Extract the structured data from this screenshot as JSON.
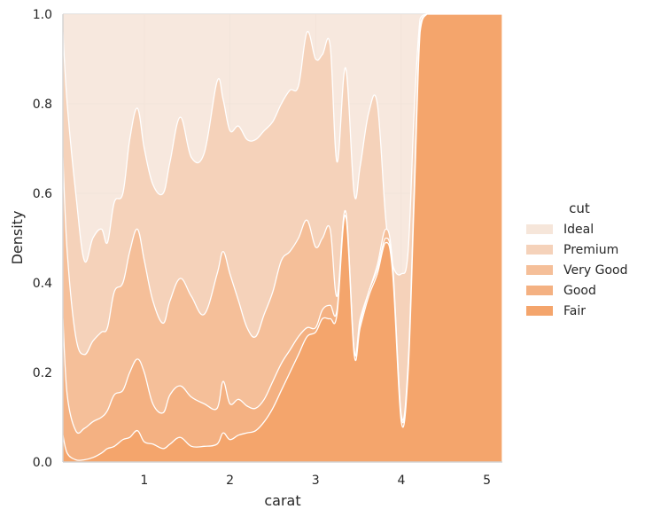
{
  "chart_data": {
    "type": "area",
    "stacked": "fill",
    "title": "",
    "xlabel": "carat",
    "ylabel": "Density",
    "xlim": [
      0.05,
      5.18
    ],
    "ylim": [
      0,
      1
    ],
    "xticks": [
      1,
      2,
      3,
      4,
      5
    ],
    "xtick_labels": [
      "1",
      "2",
      "3",
      "4",
      "5"
    ],
    "yticks": [
      0,
      0.2,
      0.4,
      0.6,
      0.8,
      1.0
    ],
    "ytick_labels": [
      "0.0",
      "0.2",
      "0.4",
      "0.6",
      "0.8",
      "1.0"
    ],
    "grid": true,
    "legend_title": "cut",
    "legend_position": "right",
    "legend": [
      {
        "name": "Ideal",
        "color": "#f6e6da"
      },
      {
        "name": "Premium",
        "color": "#f5d2ba"
      },
      {
        "name": "Very Good",
        "color": "#f5bf99"
      },
      {
        "name": "Good",
        "color": "#f4b182"
      },
      {
        "name": "Fair",
        "color": "#f4a56c"
      }
    ],
    "x": [
      0.05,
      0.1,
      0.2,
      0.3,
      0.4,
      0.5,
      0.57,
      0.65,
      0.75,
      0.83,
      0.92,
      1.0,
      1.1,
      1.22,
      1.3,
      1.42,
      1.55,
      1.7,
      1.85,
      1.92,
      2.0,
      2.1,
      2.2,
      2.3,
      2.4,
      2.5,
      2.6,
      2.7,
      2.8,
      2.9,
      3.0,
      3.08,
      3.17,
      3.25,
      3.35,
      3.45,
      3.52,
      3.62,
      3.72,
      3.82,
      3.9,
      4.0,
      4.08,
      4.15,
      4.22,
      4.3,
      4.4,
      4.6,
      4.8,
      5.0,
      5.18
    ],
    "cumulative_boundaries": [
      {
        "name": "Fair (top)",
        "values": [
          0.06,
          0.02,
          0.005,
          0.005,
          0.01,
          0.02,
          0.03,
          0.035,
          0.05,
          0.055,
          0.07,
          0.045,
          0.04,
          0.03,
          0.04,
          0.055,
          0.035,
          0.035,
          0.04,
          0.065,
          0.05,
          0.06,
          0.065,
          0.07,
          0.09,
          0.12,
          0.16,
          0.2,
          0.24,
          0.28,
          0.29,
          0.32,
          0.32,
          0.33,
          0.55,
          0.24,
          0.3,
          0.37,
          0.42,
          0.49,
          0.42,
          0.09,
          0.2,
          0.58,
          0.96,
          1.0,
          1.0,
          1.0,
          1.0,
          1.0,
          1.0
        ]
      },
      {
        "name": "Good (top)",
        "values": [
          0.32,
          0.15,
          0.07,
          0.075,
          0.09,
          0.1,
          0.115,
          0.15,
          0.16,
          0.2,
          0.23,
          0.2,
          0.13,
          0.11,
          0.15,
          0.17,
          0.145,
          0.13,
          0.12,
          0.18,
          0.13,
          0.14,
          0.125,
          0.12,
          0.14,
          0.18,
          0.22,
          0.25,
          0.28,
          0.3,
          0.3,
          0.34,
          0.35,
          0.34,
          0.56,
          0.25,
          0.31,
          0.38,
          0.43,
          0.5,
          0.43,
          0.1,
          0.21,
          0.59,
          0.97,
          1.0,
          1.0,
          1.0,
          1.0,
          1.0,
          1.0
        ]
      },
      {
        "name": "Very Good (top)",
        "values": [
          0.68,
          0.47,
          0.28,
          0.24,
          0.27,
          0.29,
          0.3,
          0.38,
          0.4,
          0.47,
          0.52,
          0.45,
          0.36,
          0.31,
          0.36,
          0.41,
          0.37,
          0.33,
          0.42,
          0.47,
          0.42,
          0.36,
          0.3,
          0.28,
          0.33,
          0.38,
          0.45,
          0.47,
          0.5,
          0.54,
          0.48,
          0.5,
          0.52,
          0.37,
          0.56,
          0.25,
          0.32,
          0.38,
          0.44,
          0.52,
          0.44,
          0.105,
          0.22,
          0.6,
          0.975,
          1.0,
          1.0,
          1.0,
          1.0,
          1.0,
          1.0
        ]
      },
      {
        "name": "Premium (top)",
        "values": [
          0.96,
          0.8,
          0.6,
          0.45,
          0.5,
          0.52,
          0.49,
          0.58,
          0.6,
          0.72,
          0.79,
          0.7,
          0.62,
          0.6,
          0.67,
          0.77,
          0.68,
          0.69,
          0.85,
          0.81,
          0.74,
          0.75,
          0.72,
          0.72,
          0.74,
          0.76,
          0.8,
          0.83,
          0.84,
          0.96,
          0.9,
          0.91,
          0.93,
          0.67,
          0.88,
          0.6,
          0.66,
          0.78,
          0.8,
          0.54,
          0.44,
          0.42,
          0.47,
          0.78,
          0.99,
          1.0,
          1.0,
          1.0,
          1.0,
          1.0,
          1.0
        ]
      }
    ]
  }
}
